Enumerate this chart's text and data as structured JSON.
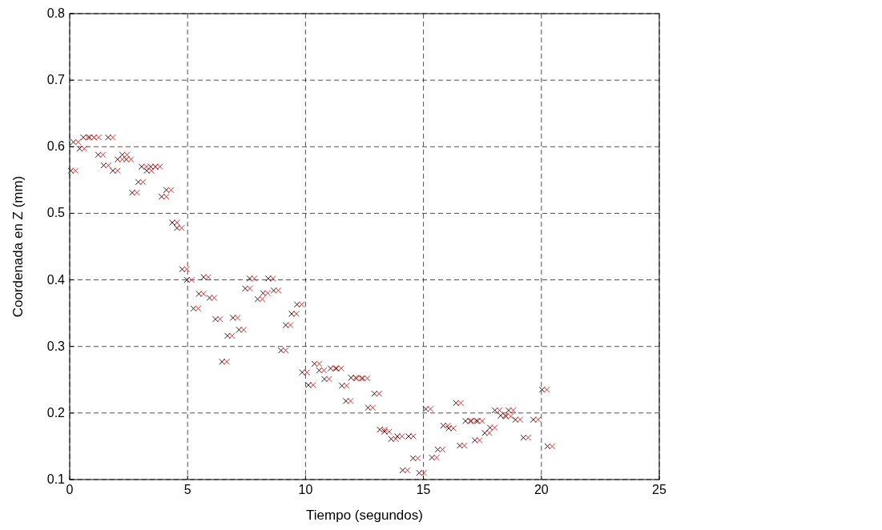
{
  "chart_data": {
    "type": "scatter",
    "xlabel": "Tiempo (segundos)",
    "ylabel": "Coordenada en Z (mm)",
    "xlim": [
      0,
      25
    ],
    "ylim": [
      0.1,
      0.8
    ],
    "xticks": [
      0,
      5,
      10,
      15,
      20,
      25
    ],
    "yticks": [
      0.1,
      0.2,
      0.3,
      0.4,
      0.5,
      0.6,
      0.7,
      0.8
    ],
    "grid": true,
    "marker": "cross",
    "series": [
      {
        "color": "#222222",
        "x": [
          0.05,
          0.16,
          0.42,
          0.58,
          0.84,
          1.03,
          1.21,
          1.44,
          1.63,
          1.83,
          2.03,
          2.23,
          2.4,
          2.65,
          2.91,
          3.05,
          3.27,
          3.44,
          3.63,
          3.9,
          4.1,
          4.35,
          4.55,
          4.77,
          4.97,
          5.25,
          5.48,
          5.68,
          5.93,
          6.18,
          6.46,
          6.69,
          6.92,
          7.18,
          7.44,
          7.63,
          7.97,
          8.2,
          8.42,
          8.65,
          8.96,
          9.16,
          9.41,
          9.64,
          9.86,
          10.12,
          10.38,
          10.58,
          10.8,
          11.06,
          11.31,
          11.54,
          11.71,
          11.93,
          12.16,
          12.42,
          12.65,
          12.92,
          13.15,
          13.35,
          13.63,
          13.89,
          14.12,
          14.37,
          14.56,
          14.82,
          15.1,
          15.36,
          15.61,
          15.84,
          16.07,
          16.38,
          16.54,
          16.78,
          17.03,
          17.18,
          17.29,
          17.6,
          17.82,
          18.03,
          18.27,
          18.5,
          18.61,
          18.9,
          19.24,
          19.66,
          20.03,
          20.26
        ],
        "values": [
          0.564,
          0.607,
          0.597,
          0.614,
          0.614,
          0.614,
          0.588,
          0.572,
          0.614,
          0.564,
          0.581,
          0.588,
          0.581,
          0.531,
          0.547,
          0.57,
          0.564,
          0.57,
          0.57,
          0.525,
          0.535,
          0.486,
          0.478,
          0.416,
          0.4,
          0.357,
          0.379,
          0.404,
          0.373,
          0.341,
          0.277,
          0.316,
          0.343,
          0.325,
          0.387,
          0.402,
          0.371,
          0.38,
          0.402,
          0.384,
          0.294,
          0.332,
          0.349,
          0.363,
          0.261,
          0.242,
          0.274,
          0.264,
          0.251,
          0.267,
          0.267,
          0.241,
          0.218,
          0.253,
          0.252,
          0.252,
          0.208,
          0.229,
          0.175,
          0.172,
          0.161,
          0.165,
          0.114,
          0.165,
          0.132,
          0.11,
          0.206,
          0.133,
          0.145,
          0.181,
          0.177,
          0.215,
          0.151,
          0.188,
          0.188,
          0.159,
          0.188,
          0.17,
          0.178,
          0.204,
          0.196,
          0.195,
          0.204,
          0.19,
          0.163,
          0.19,
          0.235,
          0.15
        ]
      },
      {
        "color": "#ff2020",
        "x": [
          0.25,
          0.36,
          0.62,
          0.78,
          1.04,
          1.23,
          1.41,
          1.64,
          1.83,
          2.03,
          2.23,
          2.43,
          2.6,
          2.85,
          3.11,
          3.25,
          3.47,
          3.64,
          3.83,
          4.1,
          4.3,
          4.55,
          4.75,
          4.97,
          5.17,
          5.45,
          5.68,
          5.88,
          6.13,
          6.38,
          6.66,
          6.89,
          7.12,
          7.38,
          7.64,
          7.83,
          8.17,
          8.4,
          8.62,
          8.85,
          9.16,
          9.36,
          9.61,
          9.84,
          10.06,
          10.32,
          10.58,
          10.78,
          11.0,
          11.26,
          11.51,
          11.74,
          11.91,
          12.13,
          12.36,
          12.62,
          12.85,
          13.12,
          13.35,
          13.55,
          13.83,
          14.09,
          14.32,
          14.57,
          14.76,
          15.02,
          15.3,
          15.56,
          15.81,
          16.04,
          16.27,
          16.58,
          16.74,
          16.98,
          17.23,
          17.38,
          17.49,
          17.8,
          18.02,
          18.23,
          18.47,
          18.7,
          18.81,
          19.1,
          19.44,
          19.86,
          20.23,
          20.46
        ],
        "values": [
          0.564,
          0.607,
          0.597,
          0.614,
          0.614,
          0.614,
          0.588,
          0.572,
          0.614,
          0.564,
          0.581,
          0.588,
          0.581,
          0.531,
          0.547,
          0.57,
          0.564,
          0.57,
          0.57,
          0.525,
          0.535,
          0.486,
          0.478,
          0.416,
          0.4,
          0.357,
          0.379,
          0.404,
          0.373,
          0.341,
          0.277,
          0.316,
          0.343,
          0.325,
          0.387,
          0.402,
          0.371,
          0.38,
          0.402,
          0.384,
          0.294,
          0.332,
          0.349,
          0.363,
          0.261,
          0.242,
          0.274,
          0.264,
          0.251,
          0.267,
          0.267,
          0.241,
          0.218,
          0.253,
          0.252,
          0.252,
          0.208,
          0.229,
          0.175,
          0.172,
          0.161,
          0.165,
          0.114,
          0.165,
          0.132,
          0.11,
          0.206,
          0.133,
          0.145,
          0.181,
          0.177,
          0.215,
          0.151,
          0.188,
          0.188,
          0.159,
          0.188,
          0.17,
          0.178,
          0.204,
          0.196,
          0.195,
          0.204,
          0.19,
          0.163,
          0.19,
          0.235,
          0.15
        ]
      }
    ]
  }
}
